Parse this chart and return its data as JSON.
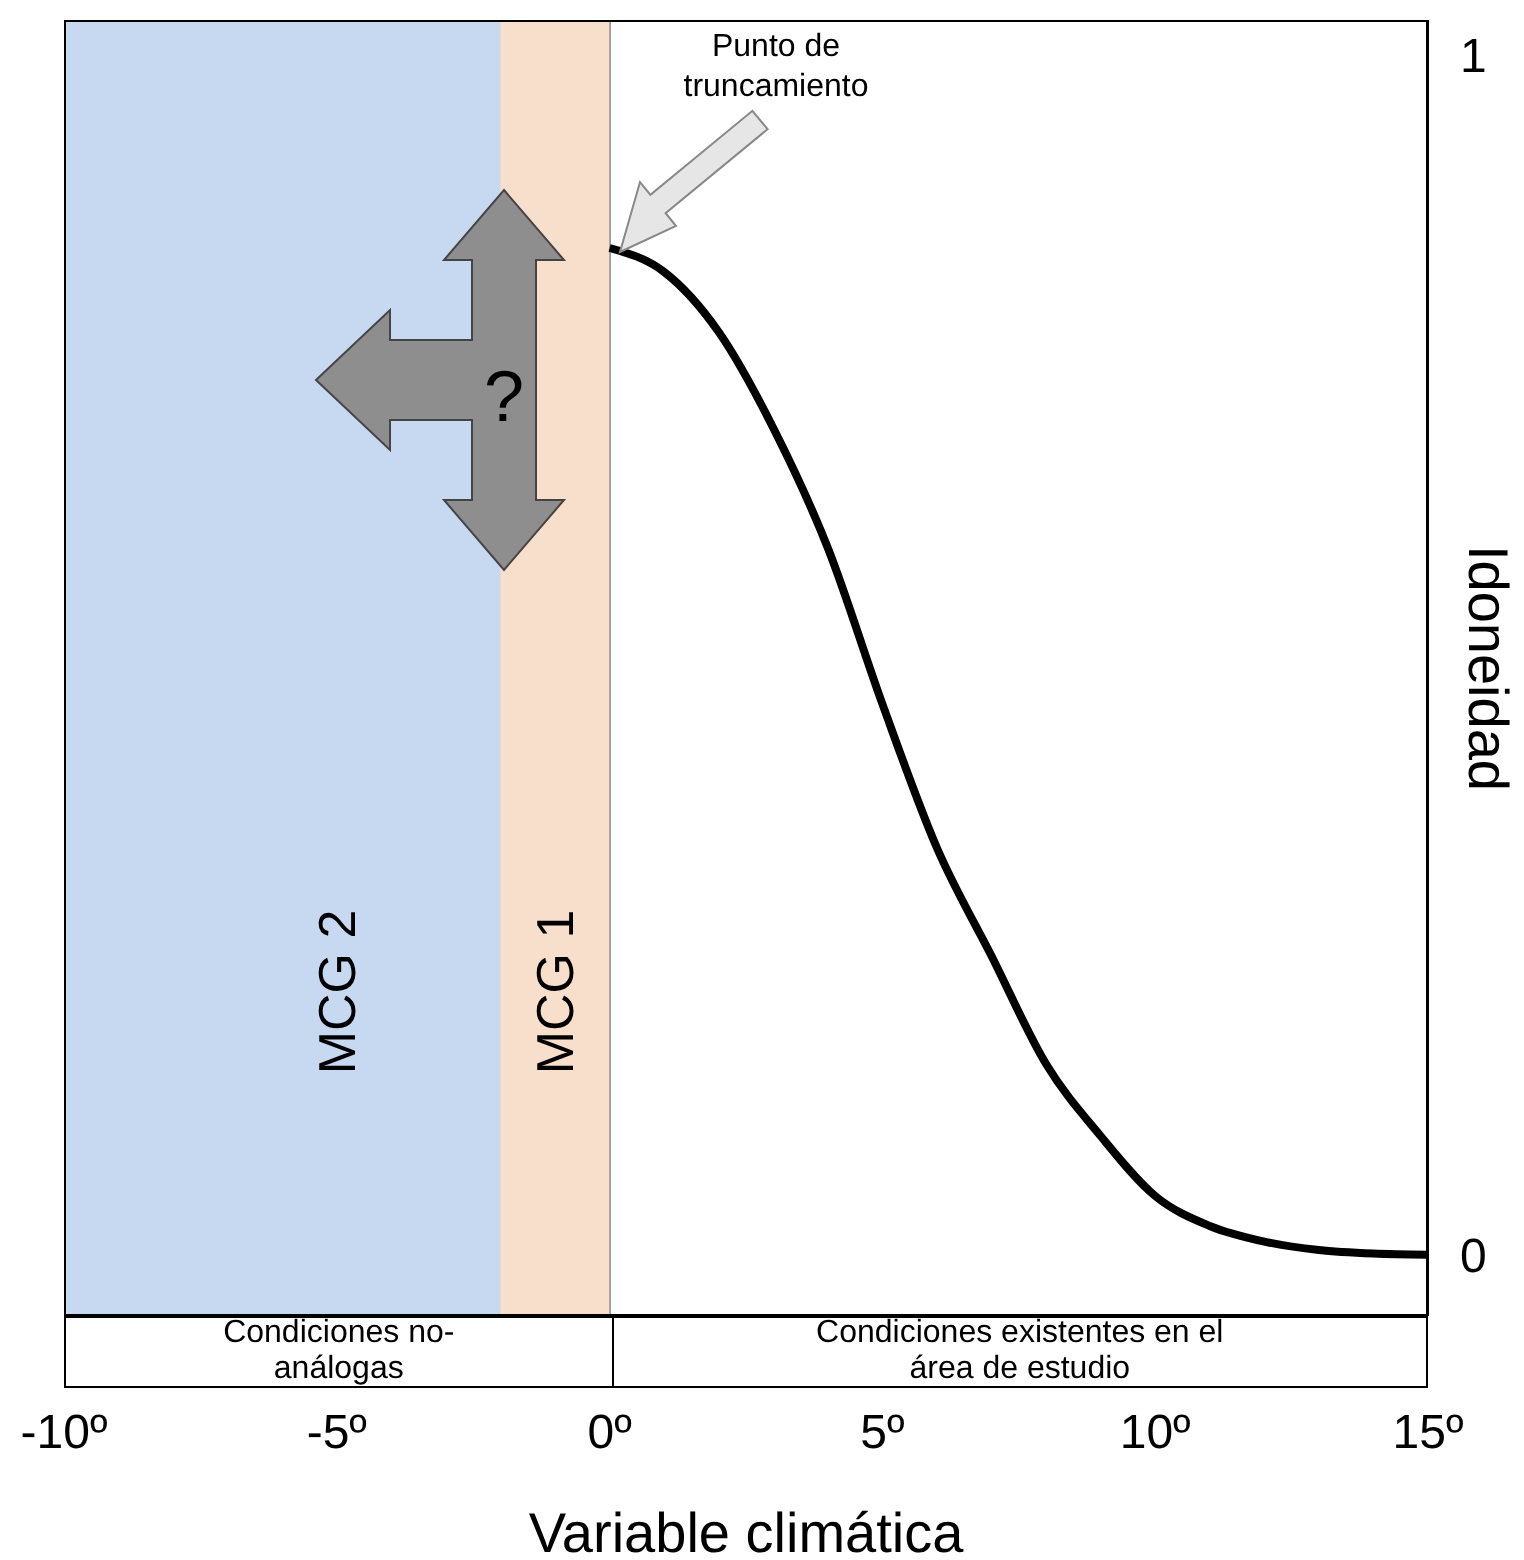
{
  "chart_data": {
    "type": "line",
    "xlabel": "Variable climática",
    "ylabel": "Idoneidad",
    "xlim": [
      -10,
      15
    ],
    "ylim": [
      -0.05,
      1.03
    ],
    "xticks": [
      {
        "value": -10,
        "label": "-10º"
      },
      {
        "value": -5,
        "label": "-5º"
      },
      {
        "value": 0,
        "label": "0º"
      },
      {
        "value": 5,
        "label": "5º"
      },
      {
        "value": 10,
        "label": "10º"
      },
      {
        "value": 15,
        "label": "15º"
      }
    ],
    "yticks": [
      0,
      1
    ],
    "x": [
      0,
      1,
      2,
      3,
      4,
      5,
      6,
      7,
      8,
      9,
      10,
      11,
      12,
      13,
      14,
      15
    ],
    "series": [
      {
        "color": "#000000",
        "values": [
          0.84,
          0.82,
          0.77,
          0.69,
          0.59,
          0.46,
          0.34,
          0.25,
          0.16,
          0.1,
          0.05,
          0.025,
          0.012,
          0.005,
          0.002,
          0.001
        ]
      }
    ],
    "bands": [
      {
        "axis": "x",
        "from": -10,
        "to": 0,
        "label": "MCG 2",
        "color": "#c6d9f1"
      },
      {
        "axis": "x",
        "from": -2,
        "to": 0,
        "label": "MCG 1",
        "color": "#f8dfcc"
      }
    ],
    "annotations": [
      "Punto de truncamiento",
      "?",
      "Condiciones no-análogas",
      "Condiciones existentes en el área de estudio"
    ],
    "marker": "none",
    "line_style": "solid"
  }
}
